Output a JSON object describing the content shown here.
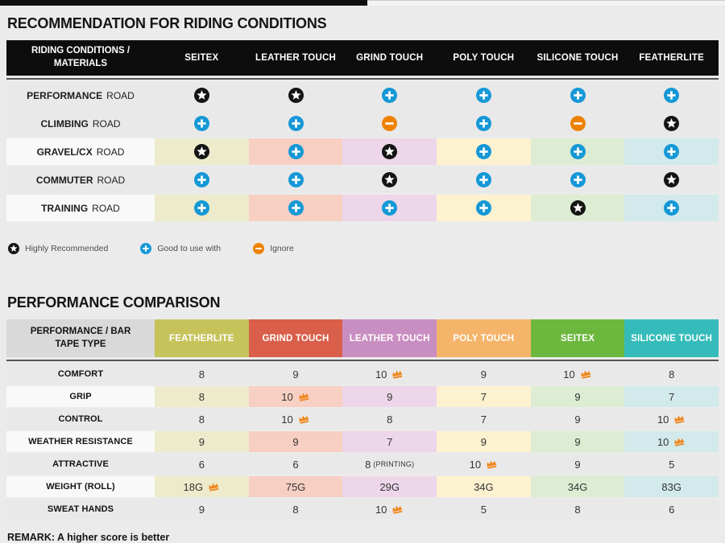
{
  "icon_colors": {
    "star": "#141414",
    "plus": "#1598d6",
    "minus": "#ee8200",
    "crown": "#f0861c"
  },
  "tints": [
    "#edebcb",
    "#f7d0c3",
    "#edd6e9",
    "#fdf2d0",
    "#dcedd3",
    "#d3eaec"
  ],
  "riding_table": {
    "title": "RECOMMENDATION FOR RIDING CONDITIONS",
    "corner": "RIDING CONDITIONS / MATERIALS",
    "columns": [
      "SEITEX",
      "LEATHER TOUCH",
      "GRIND TOUCH",
      "POLY TOUCH",
      "SILICONE TOUCH",
      "FEATHERLITE"
    ],
    "rows": [
      {
        "condition": "PERFORMANCE",
        "suffix": "ROAD",
        "tinted": false,
        "cells": [
          "star",
          "star",
          "plus",
          "plus",
          "plus",
          "plus"
        ]
      },
      {
        "condition": "CLIMBING",
        "suffix": "ROAD",
        "tinted": false,
        "cells": [
          "plus",
          "plus",
          "minus",
          "plus",
          "minus",
          "star"
        ]
      },
      {
        "condition": "GRAVEL/CX",
        "suffix": "ROAD",
        "tinted": true,
        "cells": [
          "star",
          "plus",
          "star",
          "plus",
          "plus",
          "plus"
        ]
      },
      {
        "condition": "COMMUTER",
        "suffix": "ROAD",
        "tinted": false,
        "cells": [
          "plus",
          "plus",
          "star",
          "plus",
          "plus",
          "star"
        ]
      },
      {
        "condition": "TRAINING",
        "suffix": "ROAD",
        "tinted": true,
        "cells": [
          "plus",
          "plus",
          "plus",
          "plus",
          "star",
          "plus"
        ]
      }
    ],
    "legend": [
      {
        "icon": "star",
        "label": "Highly Recommended"
      },
      {
        "icon": "plus",
        "label": "Good to use with"
      },
      {
        "icon": "minus",
        "label": "Ignore"
      }
    ]
  },
  "performance_table": {
    "title": "PERFORMANCE COMPARISON",
    "corner": "PERFORMANCE / BAR TAPE TYPE",
    "columns": [
      {
        "label": "FEATHERLITE",
        "color": "#c6c35b"
      },
      {
        "label": "GRIND TOUCH",
        "color": "#d95f4a"
      },
      {
        "label": "LEATHER TOUCH",
        "color": "#c98ec1"
      },
      {
        "label": "POLY TOUCH",
        "color": "#f4b469"
      },
      {
        "label": "SEITEX",
        "color": "#6cb83e"
      },
      {
        "label": "SILICONE TOUCH",
        "color": "#35bcba"
      }
    ],
    "rows": [
      {
        "label": "COMFORT",
        "tinted": false,
        "values": [
          {
            "text": "8"
          },
          {
            "text": "9"
          },
          {
            "text": "10",
            "crown": true
          },
          {
            "text": "9"
          },
          {
            "text": "10",
            "crown": true
          },
          {
            "text": "8"
          }
        ]
      },
      {
        "label": "GRIP",
        "tinted": true,
        "values": [
          {
            "text": "8"
          },
          {
            "text": "10",
            "crown": true
          },
          {
            "text": "9"
          },
          {
            "text": "7"
          },
          {
            "text": "9"
          },
          {
            "text": "7"
          }
        ]
      },
      {
        "label": "CONTROL",
        "tinted": false,
        "values": [
          {
            "text": "8"
          },
          {
            "text": "10",
            "crown": true
          },
          {
            "text": "8"
          },
          {
            "text": "7"
          },
          {
            "text": "9"
          },
          {
            "text": "10",
            "crown": true
          }
        ]
      },
      {
        "label": "WEATHER RESISTANCE",
        "tinted": true,
        "values": [
          {
            "text": "9"
          },
          {
            "text": "9"
          },
          {
            "text": "7"
          },
          {
            "text": "9"
          },
          {
            "text": "9"
          },
          {
            "text": "10",
            "crown": true
          }
        ]
      },
      {
        "label": "ATTRACTIVE",
        "tinted": false,
        "values": [
          {
            "text": "6"
          },
          {
            "text": "6"
          },
          {
            "text": "8",
            "note": "(PRINTING)"
          },
          {
            "text": "10",
            "crown": true
          },
          {
            "text": "9"
          },
          {
            "text": "5"
          }
        ]
      },
      {
        "label": "WEIGHT (ROLL)",
        "tinted": true,
        "values": [
          {
            "text": "18G",
            "crown": true
          },
          {
            "text": "75G"
          },
          {
            "text": "29G"
          },
          {
            "text": "34G"
          },
          {
            "text": "34G"
          },
          {
            "text": "83G"
          }
        ]
      },
      {
        "label": "SWEAT HANDS",
        "tinted": false,
        "values": [
          {
            "text": "9"
          },
          {
            "text": "8"
          },
          {
            "text": "10",
            "crown": true
          },
          {
            "text": "5"
          },
          {
            "text": "8"
          },
          {
            "text": "6"
          }
        ]
      }
    ],
    "remark": "REMARK: A higher score is better"
  }
}
